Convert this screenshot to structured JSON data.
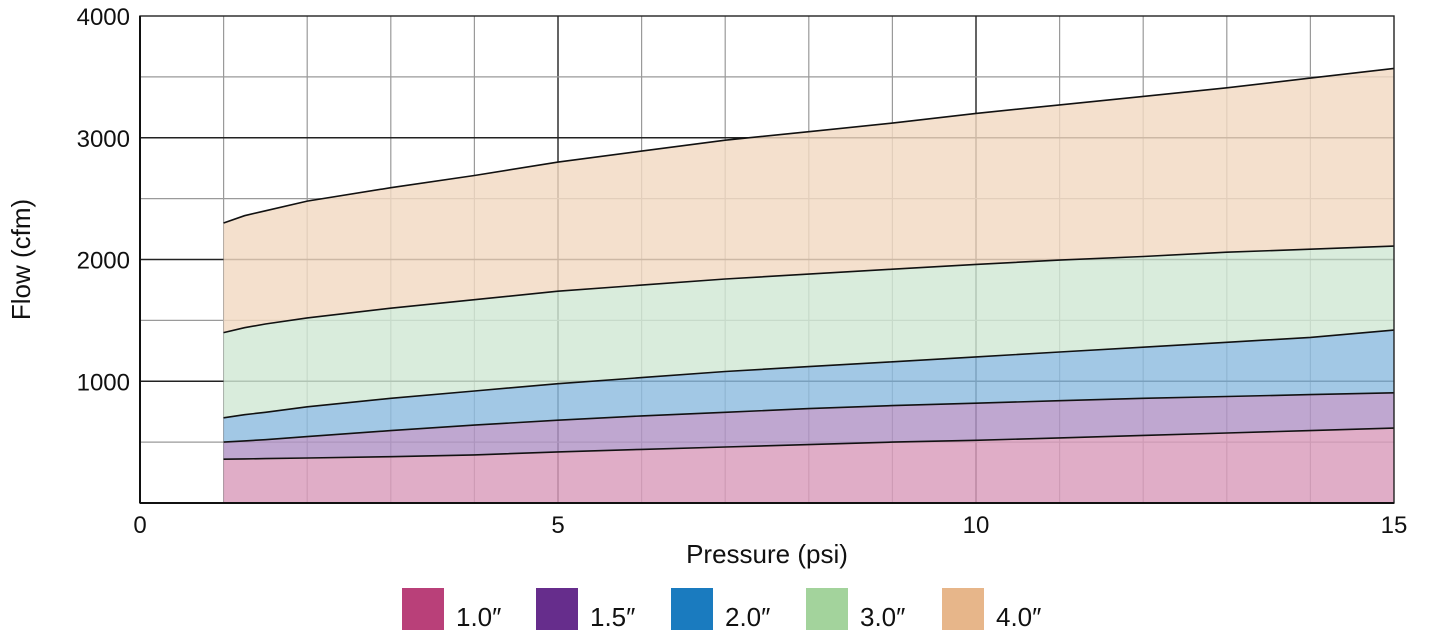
{
  "chart_data": {
    "type": "area",
    "xlabel": "Pressure (psi)",
    "ylabel": "Flow (cfm)",
    "xlim": [
      0,
      15
    ],
    "ylim": [
      0,
      4000
    ],
    "xticks": [
      0,
      5,
      10,
      15
    ],
    "yticks": [
      1000,
      2000,
      3000,
      4000
    ],
    "x_tick_labels": [
      "0",
      "5",
      "10",
      "15"
    ],
    "y_tick_labels": [
      "1000",
      "2000",
      "3000",
      "4000"
    ],
    "grid": true,
    "legend_position": "bottom",
    "x": [
      1,
      1.25,
      1.5,
      2,
      3,
      4,
      5,
      6,
      7,
      8,
      9,
      10,
      11,
      12,
      13,
      14,
      15
    ],
    "series": [
      {
        "name": "1.0″",
        "color": "#b94079",
        "fill": "#d99bbb",
        "values": [
          360,
          362,
          365,
          370,
          380,
          395,
          420,
          440,
          460,
          480,
          500,
          515,
          535,
          555,
          575,
          595,
          615
        ]
      },
      {
        "name": "1.5″",
        "color": "#662d8c",
        "fill": "#b194c6",
        "values": [
          500,
          510,
          520,
          545,
          595,
          640,
          680,
          715,
          745,
          775,
          800,
          820,
          840,
          860,
          875,
          890,
          905
        ]
      },
      {
        "name": "2.0″",
        "color": "#1a7bbf",
        "fill": "#8dbcdf",
        "values": [
          700,
          725,
          745,
          790,
          860,
          920,
          980,
          1030,
          1080,
          1120,
          1160,
          1200,
          1240,
          1280,
          1320,
          1360,
          1420
        ]
      },
      {
        "name": "3.0″",
        "color": "#a3d39c",
        "fill": "#d1e8d4",
        "values": [
          1400,
          1440,
          1470,
          1520,
          1600,
          1670,
          1740,
          1790,
          1840,
          1880,
          1920,
          1960,
          1995,
          2025,
          2060,
          2085,
          2110
        ]
      },
      {
        "name": "4.0″",
        "color": "#e7b68a",
        "fill": "#f2d9c2",
        "values": [
          2300,
          2360,
          2400,
          2480,
          2590,
          2690,
          2800,
          2890,
          2980,
          3050,
          3120,
          3200,
          3270,
          3340,
          3410,
          3490,
          3570
        ]
      }
    ]
  }
}
